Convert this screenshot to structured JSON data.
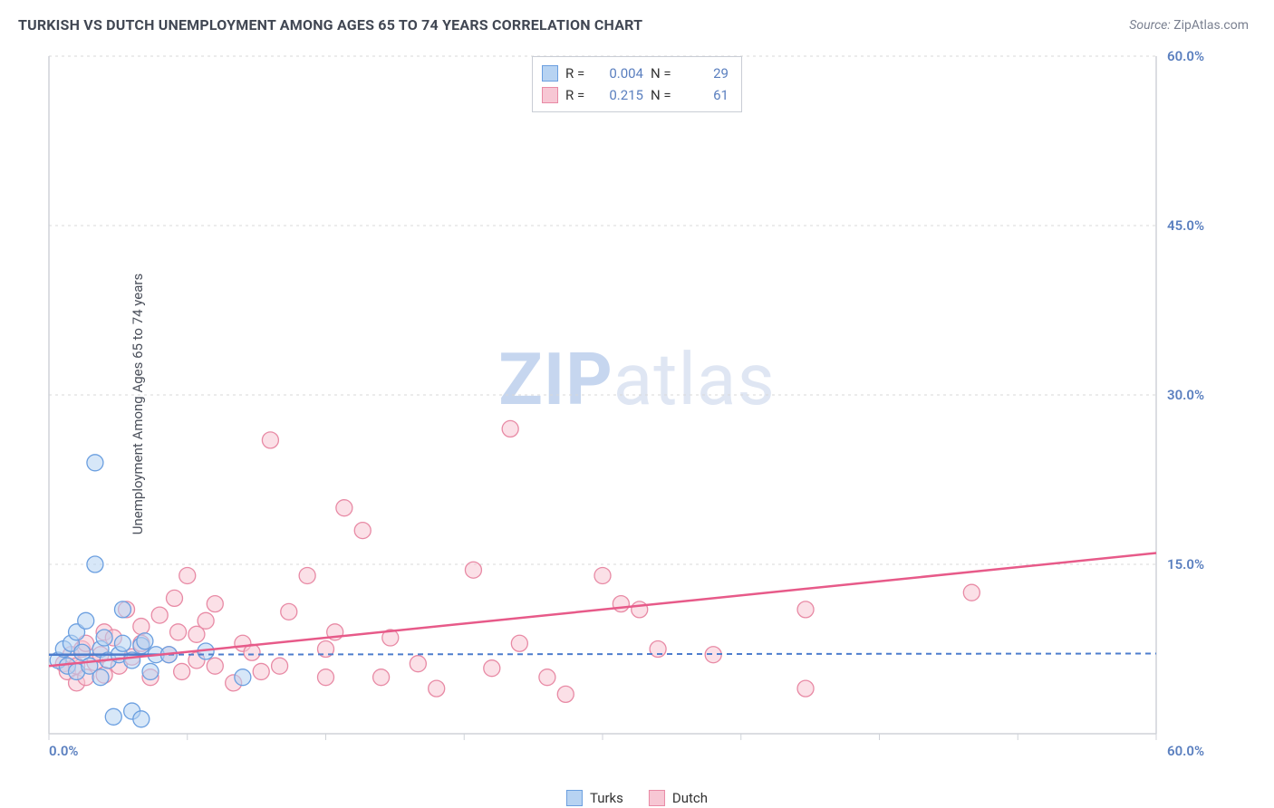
{
  "title": "TURKISH VS DUTCH UNEMPLOYMENT AMONG AGES 65 TO 74 YEARS CORRELATION CHART",
  "source_label": "Source:",
  "source_value": "ZipAtlas.com",
  "y_axis_label": "Unemployment Among Ages 65 to 74 years",
  "watermark_zip": "ZIP",
  "watermark_atlas": "atlas",
  "chart": {
    "type": "scatter",
    "xlim": [
      0,
      60
    ],
    "ylim": [
      0,
      60
    ],
    "x_min_label": "0.0%",
    "x_max_label": "60.0%",
    "y_ticks": [
      15,
      30,
      45,
      60
    ],
    "y_tick_labels": [
      "15.0%",
      "30.0%",
      "45.0%",
      "60.0%"
    ],
    "x_tick_positions": [
      0,
      7.5,
      15,
      22.5,
      30,
      37.5,
      45,
      52.5,
      60
    ],
    "background_color": "#ffffff",
    "grid_color": "#d8d8d8",
    "axis_color": "#cfd2d8",
    "marker_radius": 9,
    "marker_stroke_width": 1.3,
    "series": {
      "turks": {
        "label": "Turks",
        "fill": "#b7d3f2",
        "stroke": "#6b9fe0",
        "fill_opacity": 0.55,
        "R": "0.004",
        "N": "29",
        "trend": {
          "y_at_x0": 7.0,
          "y_at_x60": 7.1,
          "stroke": "#4d7dcd",
          "width": 2,
          "dashed": true
        },
        "trend_solid_segment": {
          "x0": 0,
          "y0": 7.0,
          "x1": 6,
          "y1": 7.01,
          "stroke": "#4d7dcd",
          "width": 2.5
        },
        "points": [
          [
            0.5,
            6.5
          ],
          [
            0.8,
            7.5
          ],
          [
            1.0,
            6.0
          ],
          [
            1.2,
            8.0
          ],
          [
            1.5,
            5.5
          ],
          [
            1.5,
            9.0
          ],
          [
            1.8,
            7.2
          ],
          [
            2.0,
            10.0
          ],
          [
            2.2,
            6.0
          ],
          [
            2.5,
            24.0
          ],
          [
            2.5,
            15.0
          ],
          [
            2.8,
            7.5
          ],
          [
            2.8,
            5.0
          ],
          [
            3.0,
            8.5
          ],
          [
            3.2,
            6.5
          ],
          [
            3.5,
            1.5
          ],
          [
            3.8,
            7.0
          ],
          [
            4.0,
            11.0
          ],
          [
            4.0,
            8.0
          ],
          [
            4.5,
            6.5
          ],
          [
            4.5,
            2.0
          ],
          [
            5.0,
            7.8
          ],
          [
            5.0,
            1.3
          ],
          [
            5.2,
            8.2
          ],
          [
            5.5,
            5.5
          ],
          [
            5.8,
            7.0
          ],
          [
            6.5,
            7.0
          ],
          [
            8.5,
            7.3
          ],
          [
            10.5,
            5.0
          ]
        ]
      },
      "dutch": {
        "label": "Dutch",
        "fill": "#f7c7d4",
        "stroke": "#e88aa5",
        "fill_opacity": 0.55,
        "R": "0.215",
        "N": "61",
        "trend": {
          "y_at_x0": 6.0,
          "y_at_x60": 16.0,
          "stroke": "#e75a89",
          "width": 2.5,
          "dashed": false
        },
        "points": [
          [
            0.8,
            6.2
          ],
          [
            1.0,
            5.5
          ],
          [
            1.2,
            7.0
          ],
          [
            1.5,
            6.0
          ],
          [
            1.5,
            4.5
          ],
          [
            1.8,
            7.5
          ],
          [
            2.0,
            5.0
          ],
          [
            2.0,
            8.0
          ],
          [
            2.5,
            6.3
          ],
          [
            2.8,
            7.0
          ],
          [
            3.0,
            5.2
          ],
          [
            3.0,
            9.0
          ],
          [
            3.5,
            8.5
          ],
          [
            3.8,
            6.0
          ],
          [
            4.2,
            11.0
          ],
          [
            4.5,
            6.8
          ],
          [
            5.0,
            8.0
          ],
          [
            5.0,
            9.5
          ],
          [
            5.5,
            5.0
          ],
          [
            6.0,
            10.5
          ],
          [
            6.5,
            7.0
          ],
          [
            6.8,
            12.0
          ],
          [
            7.0,
            9.0
          ],
          [
            7.2,
            5.5
          ],
          [
            7.5,
            14.0
          ],
          [
            8.0,
            6.5
          ],
          [
            8.0,
            8.8
          ],
          [
            8.5,
            10.0
          ],
          [
            9.0,
            6.0
          ],
          [
            9.0,
            11.5
          ],
          [
            10.0,
            4.5
          ],
          [
            10.5,
            8.0
          ],
          [
            11.0,
            7.2
          ],
          [
            11.5,
            5.5
          ],
          [
            12.0,
            26.0
          ],
          [
            12.5,
            6.0
          ],
          [
            13.0,
            10.8
          ],
          [
            14.0,
            14.0
          ],
          [
            15.0,
            5.0
          ],
          [
            15.0,
            7.5
          ],
          [
            15.5,
            9.0
          ],
          [
            16.0,
            20.0
          ],
          [
            17.0,
            18.0
          ],
          [
            18.0,
            5.0
          ],
          [
            18.5,
            8.5
          ],
          [
            20.0,
            6.2
          ],
          [
            21.0,
            4.0
          ],
          [
            23.0,
            14.5
          ],
          [
            24.0,
            5.8
          ],
          [
            25.0,
            27.0
          ],
          [
            25.5,
            8.0
          ],
          [
            27.0,
            5.0
          ],
          [
            28.0,
            3.5
          ],
          [
            30.0,
            14.0
          ],
          [
            31.0,
            11.5
          ],
          [
            32.0,
            11.0
          ],
          [
            33.0,
            7.5
          ],
          [
            36.0,
            7.0
          ],
          [
            41.0,
            4.0
          ],
          [
            41.0,
            11.0
          ],
          [
            50.0,
            12.5
          ]
        ]
      }
    }
  },
  "stat_legend": {
    "r_label": "R =",
    "n_label": "N =",
    "value_color": "#5a7fbf"
  }
}
